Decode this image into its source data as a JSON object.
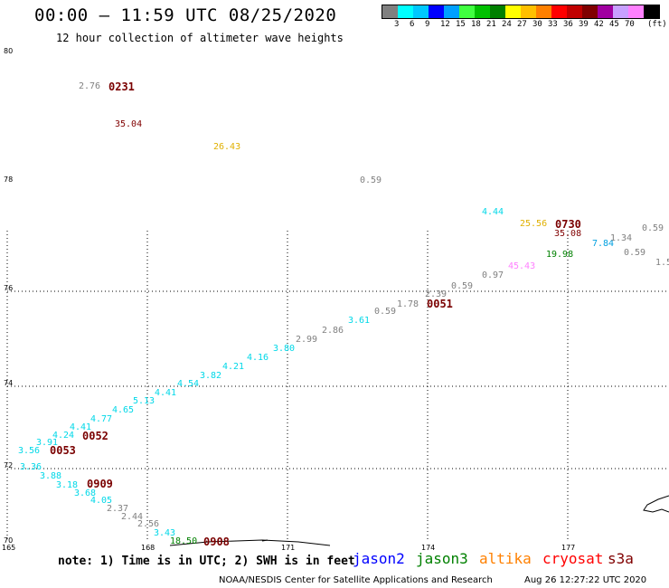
{
  "header": {
    "title": "00:00 — 11:59 UTC 08/25/2020",
    "subtitle": "12 hour collection of altimeter wave heights"
  },
  "colorbar": {
    "swatches": [
      "#808080",
      "#00ffff",
      "#00c8ff",
      "#0000ff",
      "#00a0ff",
      "#40ff40",
      "#00c000",
      "#008000",
      "#ffff00",
      "#ffc000",
      "#ff8000",
      "#ff0000",
      "#c00000",
      "#800000",
      "#a000a0",
      "#c8a0ff",
      "#ff80ff",
      "#000000"
    ],
    "labels": [
      "3",
      "6",
      "9",
      "12",
      "15",
      "18",
      "21",
      "24",
      "27",
      "30",
      "33",
      "36",
      "39",
      "42",
      "45",
      "70"
    ],
    "unit": "(ft)"
  },
  "axes": {
    "lat_labels": [
      "80",
      "78",
      "76",
      "74",
      "72",
      "70"
    ],
    "lon_labels": [
      "165",
      "168",
      "171",
      "174",
      "177"
    ]
  },
  "observations": [
    {
      "v": "2.76",
      "c": "#808080"
    },
    {
      "v": "35.04",
      "c": "#800000"
    },
    {
      "v": "26.43",
      "c": "#e0b000"
    },
    {
      "v": "0.59",
      "c": "#808080"
    },
    {
      "v": "4.44",
      "c": "#00d8e8"
    },
    {
      "v": "25.56",
      "c": "#e0b000"
    },
    {
      "v": "35.08",
      "c": "#800000"
    },
    {
      "v": "0.59",
      "c": "#808080"
    },
    {
      "v": "7.84",
      "c": "#00a0e0"
    },
    {
      "v": "1.34",
      "c": "#808080"
    },
    {
      "v": "19.98",
      "c": "#008000"
    },
    {
      "v": "0.59",
      "c": "#808080"
    },
    {
      "v": "1.5",
      "c": "#808080"
    },
    {
      "v": "45.43",
      "c": "#ff80ff"
    },
    {
      "v": "0.97",
      "c": "#808080"
    },
    {
      "v": "0.59",
      "c": "#808080"
    },
    {
      "v": "2.39",
      "c": "#808080"
    },
    {
      "v": "1.78",
      "c": "#808080"
    },
    {
      "v": "0.59",
      "c": "#808080"
    },
    {
      "v": "3.61",
      "c": "#00d8e8"
    },
    {
      "v": "2.86",
      "c": "#808080"
    },
    {
      "v": "2.99",
      "c": "#808080"
    },
    {
      "v": "3.80",
      "c": "#00d8e8"
    },
    {
      "v": "4.16",
      "c": "#00d8e8"
    },
    {
      "v": "4.21",
      "c": "#00d8e8"
    },
    {
      "v": "3.82",
      "c": "#00d8e8"
    },
    {
      "v": "4.54",
      "c": "#00d8e8"
    },
    {
      "v": "4.41",
      "c": "#00d8e8"
    },
    {
      "v": "5.13",
      "c": "#00d8e8"
    },
    {
      "v": "4.65",
      "c": "#00d8e8"
    },
    {
      "v": "4.77",
      "c": "#00d8e8"
    },
    {
      "v": "4.41",
      "c": "#00d8e8"
    },
    {
      "v": "4.24",
      "c": "#00d8e8"
    },
    {
      "v": "3.91",
      "c": "#00d8e8"
    },
    {
      "v": "3.56",
      "c": "#00d8e8"
    },
    {
      "v": "3.36",
      "c": "#00d8e8"
    },
    {
      "v": "3.88",
      "c": "#00d8e8"
    },
    {
      "v": "3.18",
      "c": "#00d8e8"
    },
    {
      "v": "3.68",
      "c": "#00d8e8"
    },
    {
      "v": "4.05",
      "c": "#00d8e8"
    },
    {
      "v": "2.37",
      "c": "#808080"
    },
    {
      "v": "2.44",
      "c": "#808080"
    },
    {
      "v": "2.56",
      "c": "#808080"
    },
    {
      "v": "3.43",
      "c": "#00d8e8"
    },
    {
      "v": "18.50",
      "c": "#008000"
    }
  ],
  "time_labels": [
    "0231",
    "0730",
    "0051",
    "0052",
    "0053",
    "0909",
    "0908"
  ],
  "note": "note: 1) Time is in UTC; 2) SWH is in feet",
  "satellites": [
    {
      "name": "jason2",
      "color": "#0000ff"
    },
    {
      "name": "jason3",
      "color": "#008000"
    },
    {
      "name": "altika",
      "color": "#ff8000"
    },
    {
      "name": "cryosat",
      "color": "#ff0000"
    },
    {
      "name": "s3a",
      "color": "#800000"
    }
  ],
  "footer": {
    "credit": "NOAA/NESDIS Center for Satellite Applications and Research",
    "timestamp": "Aug 26 12:27:22 UTC 2020"
  }
}
